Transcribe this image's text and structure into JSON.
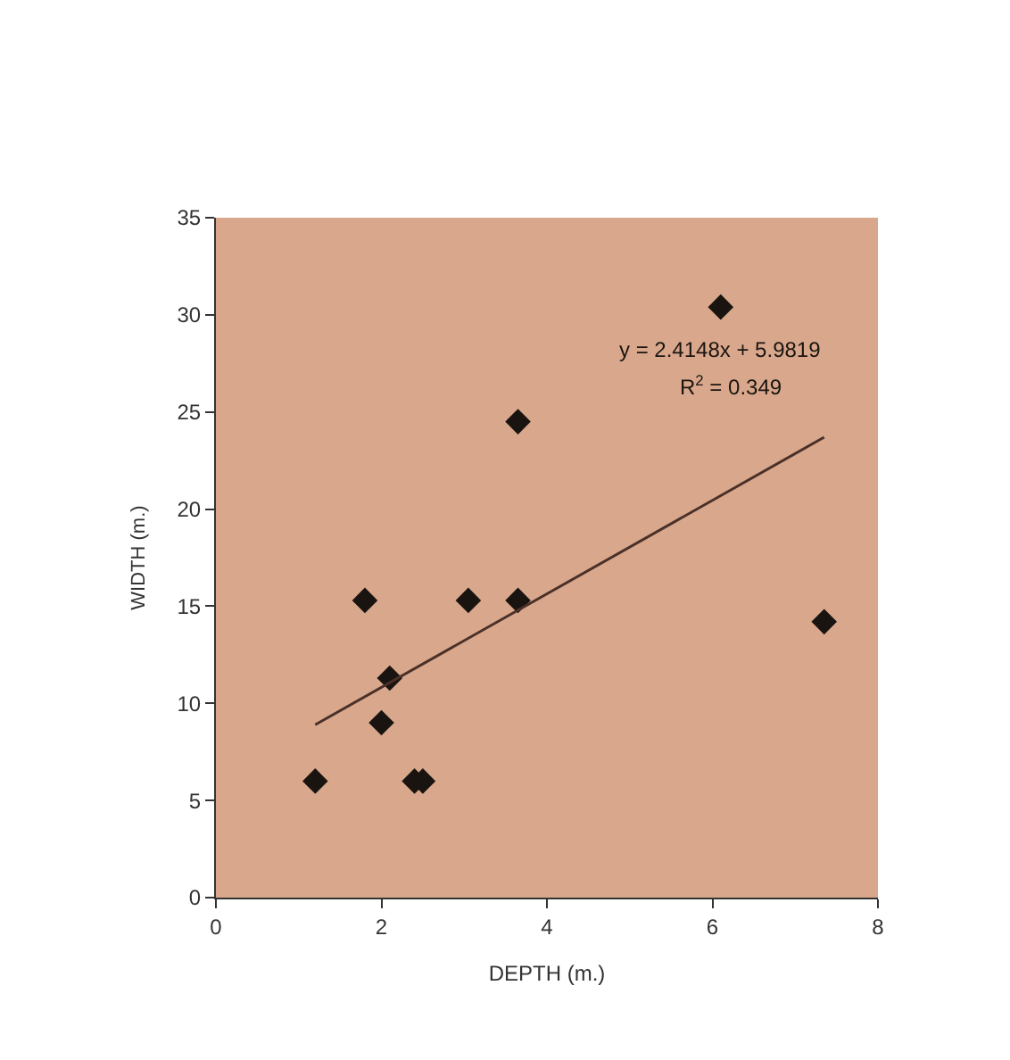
{
  "chart_data": {
    "type": "scatter",
    "xlabel": "DEPTH (m.)",
    "ylabel": "WIDTH (m.)",
    "xlim": [
      0,
      8
    ],
    "xticks": [
      0,
      2,
      4,
      6,
      8
    ],
    "ylim": [
      0,
      35
    ],
    "yticks": [
      0,
      5,
      10,
      15,
      20,
      25,
      30,
      35
    ],
    "grid": false,
    "marker": "diamond",
    "series": [
      {
        "color": "#1a1410",
        "x": [
          1.2,
          1.8,
          2.0,
          2.1,
          2.4,
          2.5,
          3.05,
          3.65,
          3.65,
          6.1,
          7.35
        ],
        "values": [
          6,
          15.3,
          9,
          11.3,
          6,
          6,
          15.3,
          24.5,
          15.3,
          30.4,
          14.2
        ]
      },
      {
        "type": "line",
        "color": "#4a3028",
        "x": [
          1.2,
          7.35
        ],
        "values": [
          8.9,
          23.7
        ],
        "marker": "none"
      }
    ],
    "annotations": [
      "y = 2.4148x + 5.9819",
      "R$^{2}$ = 0.349"
    ]
  }
}
